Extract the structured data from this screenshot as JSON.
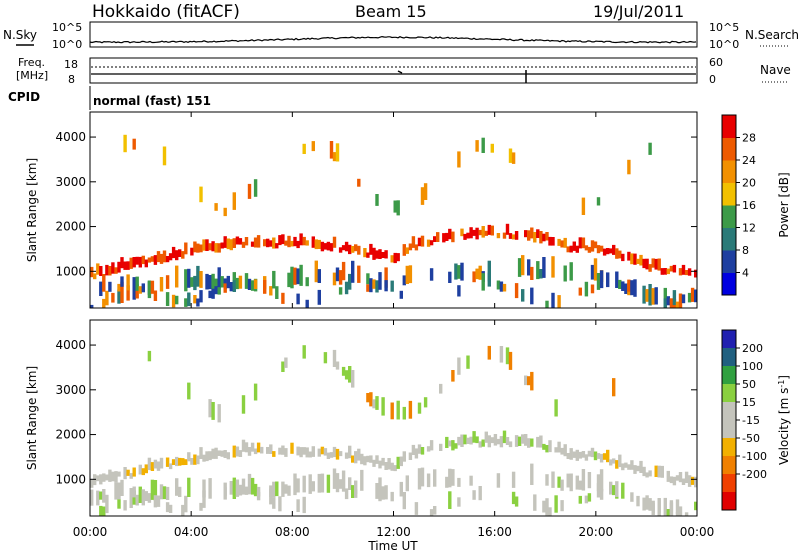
{
  "header": {
    "station": "Hokkaido (fitACF)",
    "beam": "Beam 15",
    "date": "19/Jul/2011"
  },
  "sky_panel": {
    "left_label": "N.Sky",
    "right_label": "N.Search",
    "left_ticks": [
      "10^5",
      "10^0"
    ],
    "right_ticks": [
      "10^5",
      "10^0"
    ]
  },
  "freq_panel": {
    "left_label_1": "Freq.",
    "left_label_2": "[MHz]",
    "right_label": "Nave",
    "left_ticks": [
      "18",
      "8"
    ],
    "right_ticks": [
      "60",
      "0"
    ]
  },
  "cpid": {
    "label": "CPID",
    "value": "normal (fast) 151"
  },
  "colors": {
    "power_scale": [
      "#0000e0",
      "#1e3fa0",
      "#2a7a78",
      "#3c9a48",
      "#f2c000",
      "#f29000",
      "#ee5a00",
      "#e80000"
    ],
    "velocity_scale": [
      "#e00000",
      "#f04000",
      "#f08000",
      "#f2b000",
      "#c4c4bc",
      "#c4c4bc",
      "#8ad040",
      "#30a040",
      "#206080",
      "#2020b0"
    ],
    "ground_scatter": "#c4c4bc"
  },
  "chart_data": [
    {
      "type": "heatmap",
      "title": "",
      "xlabel": "Time UT",
      "ylabel": "Slant Range [km]",
      "x_ticks": [
        "00:00",
        "04:00",
        "08:00",
        "12:00",
        "16:00",
        "20:00",
        "00:00"
      ],
      "y_ticks": [
        "1000",
        "2000",
        "3000",
        "4000"
      ],
      "xlim_hours": [
        0,
        24
      ],
      "ylim_km": [
        180,
        4560
      ],
      "colorbar": {
        "label": "Power [dB]",
        "ticks": [
          "4",
          "8",
          "12",
          "16",
          "20",
          "24",
          "28"
        ],
        "range": [
          0,
          32
        ]
      },
      "dominant_band_km": [
        {
          "t": 0,
          "r": 1000
        },
        {
          "t": 2,
          "r": 1250
        },
        {
          "t": 4,
          "r": 1500
        },
        {
          "t": 6,
          "r": 1700
        },
        {
          "t": 8,
          "r": 1700
        },
        {
          "t": 10,
          "r": 1600
        },
        {
          "t": 12,
          "r": 1350
        },
        {
          "t": 13,
          "r": 1700
        },
        {
          "t": 15,
          "r": 1900
        },
        {
          "t": 17,
          "r": 1900
        },
        {
          "t": 18,
          "r": 1800
        },
        {
          "t": 19,
          "r": 1600
        },
        {
          "t": 20,
          "r": 1600
        },
        {
          "t": 22,
          "r": 1200
        },
        {
          "t": 24,
          "r": 950
        }
      ]
    },
    {
      "type": "heatmap",
      "title": "",
      "xlabel": "Time UT",
      "ylabel": "Slant Range [km]",
      "x_ticks": [
        "00:00",
        "04:00",
        "08:00",
        "12:00",
        "16:00",
        "20:00",
        "00:00"
      ],
      "y_ticks": [
        "1000",
        "2000",
        "3000",
        "4000"
      ],
      "xlim_hours": [
        0,
        24
      ],
      "ylim_km": [
        180,
        4560
      ],
      "colorbar": {
        "label": "Velocity [m s^-1]",
        "ticks": [
          "200",
          "100",
          "50",
          "15",
          "-15",
          "-50",
          "-100",
          "-200"
        ],
        "range": [
          -250,
          250
        ]
      }
    }
  ]
}
